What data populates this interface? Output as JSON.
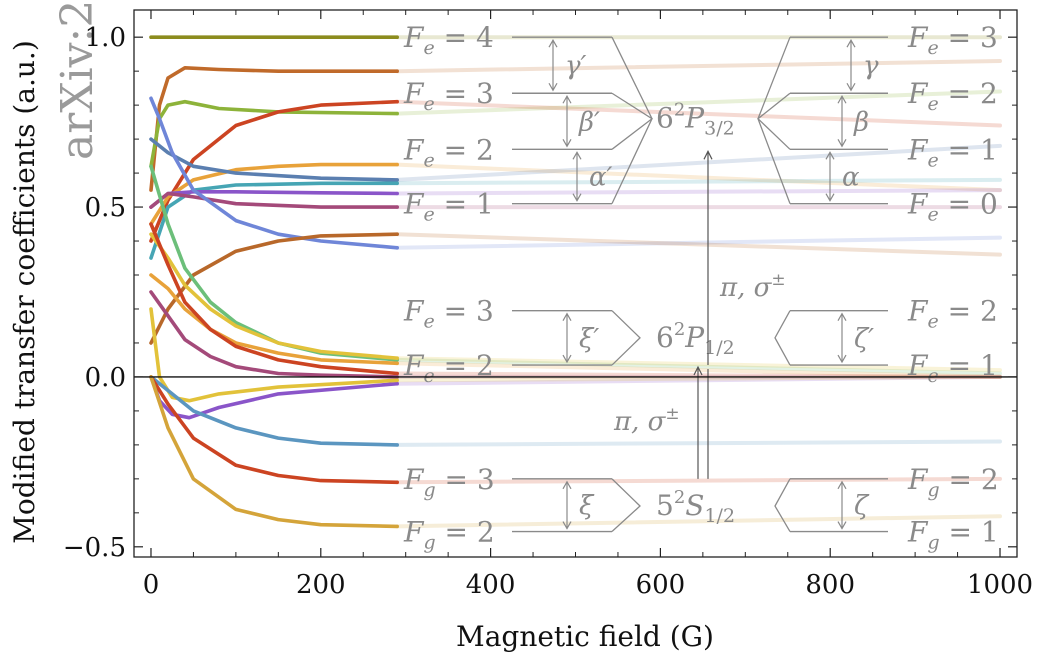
{
  "watermark": "arXiv:2",
  "chart_data": {
    "type": "line",
    "xlabel": "Magnetic field (G)",
    "ylabel": "Modified transfer coefficients (a.u.)",
    "xlim": [
      -20,
      1020
    ],
    "ylim": [
      -0.53,
      1.08
    ],
    "xticks": [
      0,
      200,
      400,
      600,
      800,
      1000
    ],
    "xtick_labels": [
      "0",
      "200",
      "400",
      "600",
      "800",
      "1000"
    ],
    "yticks": [
      -0.5,
      0.0,
      0.5,
      1.0
    ],
    "ytick_labels": [
      "−0.5",
      "0.0",
      "0.5",
      "1.0"
    ],
    "grid": false,
    "solid_until_x": 290,
    "series": [
      {
        "color": "#8c8c1e",
        "x": [
          0,
          290,
          1000
        ],
        "y": [
          1.0,
          1.0,
          1.0
        ]
      },
      {
        "color": "#c06a2a",
        "x": [
          0,
          10,
          20,
          40,
          80,
          150,
          290,
          1000
        ],
        "y": [
          0.55,
          0.8,
          0.88,
          0.91,
          0.905,
          0.9,
          0.9,
          0.93
        ]
      },
      {
        "color": "#8db33a",
        "x": [
          0,
          10,
          20,
          40,
          80,
          150,
          290,
          1000
        ],
        "y": [
          0.62,
          0.76,
          0.8,
          0.81,
          0.79,
          0.78,
          0.775,
          0.84
        ]
      },
      {
        "color": "#cc4422",
        "x": [
          0,
          20,
          50,
          100,
          150,
          200,
          290,
          1000
        ],
        "y": [
          0.4,
          0.52,
          0.64,
          0.74,
          0.78,
          0.8,
          0.81,
          0.74
        ]
      },
      {
        "color": "#e8a23a",
        "x": [
          0,
          20,
          50,
          100,
          150,
          200,
          290,
          1000
        ],
        "y": [
          0.45,
          0.53,
          0.58,
          0.61,
          0.62,
          0.625,
          0.625,
          0.55
        ]
      },
      {
        "color": "#5b7fb0",
        "x": [
          0,
          20,
          50,
          100,
          200,
          290,
          1000
        ],
        "y": [
          0.7,
          0.66,
          0.62,
          0.6,
          0.585,
          0.58,
          0.68
        ]
      },
      {
        "color": "#46a5b4",
        "x": [
          0,
          20,
          50,
          100,
          200,
          290,
          1000
        ],
        "y": [
          0.35,
          0.5,
          0.55,
          0.565,
          0.57,
          0.57,
          0.58
        ]
      },
      {
        "color": "#8a55c9",
        "x": [
          0,
          20,
          50,
          100,
          200,
          290,
          1000
        ],
        "y": [
          0.5,
          0.54,
          0.545,
          0.545,
          0.542,
          0.54,
          0.55
        ]
      },
      {
        "color": "#a44a7a",
        "x": [
          0,
          20,
          50,
          100,
          200,
          290,
          1000
        ],
        "y": [
          0.5,
          0.54,
          0.53,
          0.51,
          0.5,
          0.5,
          0.5
        ]
      },
      {
        "color": "#6f86d8",
        "x": [
          0,
          10,
          25,
          50,
          100,
          150,
          200,
          290,
          1000
        ],
        "y": [
          0.82,
          0.76,
          0.66,
          0.55,
          0.46,
          0.42,
          0.4,
          0.38,
          0.41
        ]
      },
      {
        "color": "#b8682a",
        "x": [
          0,
          20,
          50,
          100,
          150,
          200,
          290,
          1000
        ],
        "y": [
          0.1,
          0.2,
          0.3,
          0.37,
          0.4,
          0.415,
          0.42,
          0.36
        ]
      },
      {
        "color": "#6cbf7a",
        "x": [
          0,
          20,
          40,
          70,
          100,
          150,
          200,
          290,
          1000
        ],
        "y": [
          0.62,
          0.45,
          0.32,
          0.22,
          0.16,
          0.1,
          0.07,
          0.05,
          0.01
        ]
      },
      {
        "color": "#e2c23a",
        "x": [
          0,
          20,
          40,
          70,
          100,
          150,
          200,
          290,
          1000
        ],
        "y": [
          0.42,
          0.35,
          0.27,
          0.2,
          0.15,
          0.1,
          0.075,
          0.055,
          0.02
        ]
      },
      {
        "color": "#e8a23a",
        "x": [
          0,
          20,
          40,
          70,
          100,
          150,
          200,
          290,
          1000
        ],
        "y": [
          0.3,
          0.26,
          0.2,
          0.14,
          0.1,
          0.07,
          0.05,
          0.04,
          0.0
        ]
      },
      {
        "color": "#cc4422",
        "x": [
          0,
          20,
          40,
          70,
          100,
          150,
          200,
          290,
          1000
        ],
        "y": [
          0.45,
          0.33,
          0.22,
          0.14,
          0.09,
          0.05,
          0.03,
          0.01,
          0.0
        ]
      },
      {
        "color": "#a44a7a",
        "x": [
          0,
          20,
          40,
          70,
          100,
          150,
          200,
          290,
          1000
        ],
        "y": [
          0.25,
          0.18,
          0.11,
          0.06,
          0.03,
          0.01,
          0.005,
          0.0,
          0.0
        ]
      },
      {
        "color": "#8a55c9",
        "x": [
          0,
          10,
          25,
          45,
          80,
          150,
          290,
          1000
        ],
        "y": [
          0.0,
          -0.07,
          -0.11,
          -0.12,
          -0.09,
          -0.05,
          -0.02,
          0.0
        ]
      },
      {
        "color": "#e2c23a",
        "x": [
          0,
          10,
          25,
          45,
          80,
          150,
          290,
          1000
        ],
        "y": [
          0.2,
          0.0,
          -0.06,
          -0.07,
          -0.05,
          -0.03,
          -0.01,
          0.0
        ]
      },
      {
        "color": "#5b96c0",
        "x": [
          0,
          20,
          50,
          100,
          150,
          200,
          290,
          1000
        ],
        "y": [
          0.0,
          -0.04,
          -0.1,
          -0.15,
          -0.18,
          -0.195,
          -0.2,
          -0.19
        ]
      },
      {
        "color": "#cc4422",
        "x": [
          0,
          20,
          50,
          100,
          150,
          200,
          290,
          1000
        ],
        "y": [
          0.0,
          -0.08,
          -0.18,
          -0.26,
          -0.29,
          -0.305,
          -0.31,
          -0.3
        ]
      },
      {
        "color": "#d4a43a",
        "x": [
          0,
          20,
          50,
          100,
          150,
          200,
          290,
          1000
        ],
        "y": [
          0.0,
          -0.15,
          -0.3,
          -0.39,
          -0.42,
          -0.435,
          -0.44,
          -0.41
        ]
      }
    ],
    "annotations": {
      "left_levels": [
        {
          "label": "F_e = 4",
          "base": "F",
          "sub": "e",
          "rest": " = 4",
          "y": 1.0
        },
        {
          "label": "F_e = 3",
          "base": "F",
          "sub": "e",
          "rest": " = 3",
          "y": 0.835
        },
        {
          "label": "F_e = 2",
          "base": "F",
          "sub": "e",
          "rest": " = 2",
          "y": 0.67
        },
        {
          "label": "F_e = 1",
          "base": "F",
          "sub": "e",
          "rest": " = 1",
          "y": 0.51
        },
        {
          "label": "F_e = 3",
          "base": "F",
          "sub": "e",
          "rest": " = 3",
          "y": 0.195
        },
        {
          "label": "F_e = 2",
          "base": "F",
          "sub": "e",
          "rest": " = 2",
          "y": 0.035
        },
        {
          "label": "F_g = 3",
          "base": "F",
          "sub": "g",
          "rest": " = 3",
          "y": -0.3
        },
        {
          "label": "F_g = 2",
          "base": "F",
          "sub": "g",
          "rest": " = 2",
          "y": -0.455
        }
      ],
      "right_levels": [
        {
          "label": "F_e = 3",
          "base": "F",
          "sub": "e",
          "rest": " = 3",
          "y": 1.0
        },
        {
          "label": "F_e = 2",
          "base": "F",
          "sub": "e",
          "rest": " = 2",
          "y": 0.835
        },
        {
          "label": "F_e = 1",
          "base": "F",
          "sub": "e",
          "rest": " = 1",
          "y": 0.67
        },
        {
          "label": "F_e = 0",
          "base": "F",
          "sub": "e",
          "rest": " = 0",
          "y": 0.51
        },
        {
          "label": "F_e = 2",
          "base": "F",
          "sub": "e",
          "rest": " = 2",
          "y": 0.195
        },
        {
          "label": "F_e = 1",
          "base": "F",
          "sub": "e",
          "rest": " = 1",
          "y": 0.035
        },
        {
          "label": "F_g = 2",
          "base": "F",
          "sub": "g",
          "rest": " = 2",
          "y": -0.3
        },
        {
          "label": "F_g = 1",
          "base": "F",
          "sub": "g",
          "rest": " = 1",
          "y": -0.455
        }
      ],
      "manifolds": [
        {
          "label": "6²P3/2",
          "main": "6",
          "sup": "2",
          "sym": "P",
          "sub": "3/2",
          "y": 0.76
        },
        {
          "label": "6²P1/2",
          "main": "6",
          "sup": "2",
          "sym": "P",
          "sub": "1/2",
          "y": 0.115
        },
        {
          "label": "5²S1/2",
          "main": "5",
          "sup": "2",
          "sym": "S",
          "sub": "1/2",
          "y": -0.38
        }
      ],
      "left_splittings": [
        {
          "label": "γ′",
          "y1": 1.0,
          "y2": 0.835
        },
        {
          "label": "β′",
          "y1": 0.835,
          "y2": 0.67
        },
        {
          "label": "α′",
          "y1": 0.67,
          "y2": 0.51
        },
        {
          "label": "ξ′",
          "y1": 0.195,
          "y2": 0.035
        },
        {
          "label": "ξ",
          "y1": -0.3,
          "y2": -0.455
        }
      ],
      "right_splittings": [
        {
          "label": "γ",
          "y1": 1.0,
          "y2": 0.835
        },
        {
          "label": "β",
          "y1": 0.835,
          "y2": 0.67
        },
        {
          "label": "α",
          "y1": 0.67,
          "y2": 0.51
        },
        {
          "label": "ζ′",
          "y1": 0.195,
          "y2": 0.035
        },
        {
          "label": "ζ",
          "y1": -0.3,
          "y2": -0.455
        }
      ],
      "transitions": [
        {
          "label": "π, σ±",
          "main": "π, σ",
          "sup": "±",
          "from_y": 0.035,
          "to_y": 0.67
        },
        {
          "label": "π, σ±",
          "main": "π, σ",
          "sup": "±",
          "from_y": -0.3,
          "to_y": 0.035
        }
      ]
    }
  }
}
